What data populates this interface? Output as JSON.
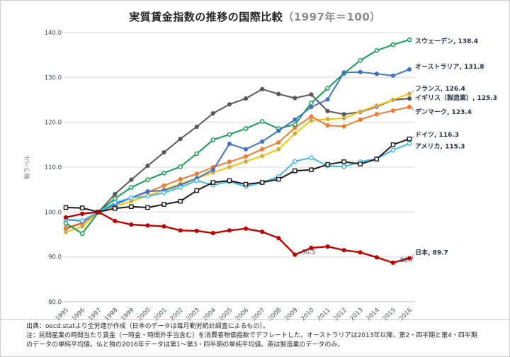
{
  "page": {
    "title_main": "実質賃金指数の推移の国際比較",
    "title_sub": "（1997年＝100）"
  },
  "footnote": {
    "line1": "出典：oecd.statより全労連が作成（日本のデータは毎月勤労統計調査によるもの）。",
    "line2": "注：民間産業の時間当たり賃金（一時金・時間外手当含む）を消費者物価指数でデフレートした。オーストラリアは2013年以降、第2・四半期と第4・四半期",
    "line3": "のデータの単純平均値。仏と独の2016年データは第1～第3・四半期の単純平均値。英は製造業のデータのみ。"
  },
  "chart_data": {
    "type": "line",
    "title": "実質賃金指数の推移の国際比較（1997年＝100）",
    "xlabel": "",
    "ylabel": "軸ラベル",
    "ylim": [
      80,
      140
    ],
    "ytick_step": 10,
    "grid": true,
    "legend_position": "right-end-labels",
    "x": [
      1995,
      1996,
      1997,
      1998,
      1999,
      2000,
      2001,
      2002,
      2003,
      2004,
      2005,
      2006,
      2007,
      2008,
      2009,
      2010,
      2011,
      2012,
      2013,
      2014,
      2015,
      2016
    ],
    "series": [
      {
        "name": "イギリス（製造業）",
        "end_label": "イギリス（製造業）, 125.3",
        "color": "#595959",
        "marker": "circle",
        "marker_fill": "#595959",
        "values": [
          96.3,
          97.5,
          100,
          104,
          107.2,
          110.3,
          113.3,
          116.3,
          119,
          122,
          124,
          125.3,
          127.4,
          126.3,
          125.4,
          126.2,
          122.5,
          121.8,
          122.3,
          123.5,
          125,
          125.3
        ]
      },
      {
        "name": "フランス",
        "end_label": "フランス, 126.4",
        "color": "#ffc000",
        "marker": "circle",
        "marker_fill": "#a6a6a6",
        "values": [
          95.5,
          96.8,
          100,
          101.2,
          102.4,
          103.6,
          105,
          106.3,
          107.5,
          108.8,
          110,
          111.3,
          112.5,
          114,
          117.5,
          120.4,
          120.7,
          120.9,
          122.4,
          123.7,
          125,
          126.4
        ]
      },
      {
        "name": "デンマーク",
        "end_label": "デンマーク, 123.4",
        "color": "#ed7d31",
        "marker": "circle",
        "marker_fill": "#ed7d31",
        "values": [
          96.5,
          97.6,
          100,
          101.8,
          103.2,
          104.4,
          105.9,
          107.3,
          108.5,
          110,
          111.2,
          112.4,
          114,
          115.5,
          118.8,
          121.3,
          119.3,
          119.1,
          120.6,
          121.8,
          122.6,
          123.4
        ]
      },
      {
        "name": "スウェーデン",
        "end_label": "スウェーデン, 138.4",
        "color": "#149e53",
        "marker": "circle-open",
        "marker_fill": "#e8f5ec",
        "values": [
          97.5,
          95.2,
          100,
          103,
          105.5,
          107.2,
          108.7,
          110.1,
          113,
          116.1,
          117.3,
          118.6,
          120.2,
          118.6,
          119.5,
          124.3,
          127.6,
          130.9,
          133.8,
          136,
          137.3,
          138.4
        ]
      },
      {
        "name": "オーストラリア",
        "end_label": "オーストラリア, 131.8",
        "color": "#4472c4",
        "marker": "circle",
        "marker_fill": "#4472c4",
        "values": [
          98.3,
          98,
          100,
          101.6,
          103.2,
          104.6,
          104.8,
          106,
          107.5,
          109.4,
          115.2,
          114,
          115.7,
          118.1,
          120.6,
          123.4,
          125.1,
          131.1,
          131.2,
          130.8,
          130.4,
          131.8
        ]
      },
      {
        "name": "アメリカ",
        "end_label": "アメリカ, 115.3",
        "color": "#41b8e8",
        "marker": "circle-open",
        "marker_fill": "#ffffff",
        "values": [
          98.4,
          98.1,
          100,
          102.1,
          103.2,
          103.5,
          104.3,
          105.5,
          107,
          106,
          106.8,
          105.7,
          106.6,
          107.9,
          111.3,
          112.1,
          110.3,
          110.1,
          111.2,
          111.9,
          113.8,
          115.3
        ]
      },
      {
        "name": "ドイツ",
        "end_label": "ドイツ, 116.3",
        "color": "#1a1a1a",
        "marker": "square-open",
        "marker_fill": "#ffffff",
        "values": [
          101,
          100.9,
          100,
          100.8,
          101.2,
          101,
          101.7,
          102.4,
          104.8,
          106.6,
          107,
          106.2,
          106.6,
          107.3,
          109.2,
          109.4,
          110.6,
          111.2,
          110.7,
          111.8,
          115,
          116.3
        ]
      },
      {
        "name": "日本",
        "end_label": "日本, 89.7",
        "color": "#c00000",
        "marker": "circle",
        "marker_fill": "#c00000",
        "values": [
          98.8,
          99.6,
          100,
          98,
          97.2,
          97,
          96.8,
          95.9,
          95.8,
          95.3,
          95.9,
          96.3,
          95.6,
          94.2,
          90.5,
          92,
          92.3,
          91.5,
          91,
          89.9,
          88.7,
          89.7
        ]
      }
    ],
    "annotations": [
      {
        "text": "90.5",
        "x": 2009,
        "y": 90.5
      },
      {
        "text": "88.7",
        "x": 2015,
        "y": 88.7
      }
    ]
  }
}
